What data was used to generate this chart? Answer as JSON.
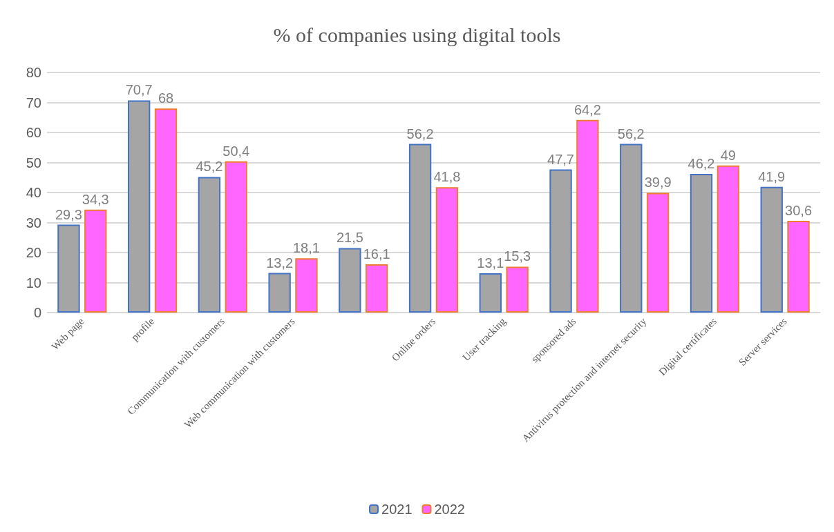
{
  "chart_data": {
    "type": "bar",
    "title": "% of companies using digital tools",
    "categories": [
      "Web page",
      "profile",
      "Communication with customers",
      "Web communication with customers",
      null,
      "Online orders",
      "User tracking",
      "sponsored ads",
      "Antivirus protection and internet security",
      "Digital certificates",
      "Server services"
    ],
    "series": [
      {
        "name": "2021",
        "color": "#a5a5a5",
        "values": [
          29.3,
          70.7,
          45.2,
          13.2,
          21.5,
          56.2,
          13.1,
          47.7,
          56.2,
          46.2,
          41.9
        ],
        "value_labels": [
          "29,3",
          "70,7",
          "45,2",
          "13,2",
          "21,5",
          "56,2",
          "13,1",
          "47,7",
          "56,2",
          "46,2",
          "41,9"
        ]
      },
      {
        "name": "2022",
        "color": "#ff66ff",
        "values": [
          34.3,
          68,
          50.4,
          18.1,
          16.1,
          41.8,
          15.3,
          64.2,
          39.9,
          49,
          30.6
        ],
        "value_labels": [
          "34,3",
          "68",
          "50,4",
          "18,1",
          "16,1",
          "41,8",
          "15,3",
          "64,2",
          "39,9",
          "49",
          "30,6"
        ]
      }
    ],
    "ylim": [
      0,
      80
    ],
    "yticks": [
      0,
      10,
      20,
      30,
      40,
      50,
      60,
      70,
      80
    ],
    "grid": "y",
    "legend": "bottom"
  }
}
